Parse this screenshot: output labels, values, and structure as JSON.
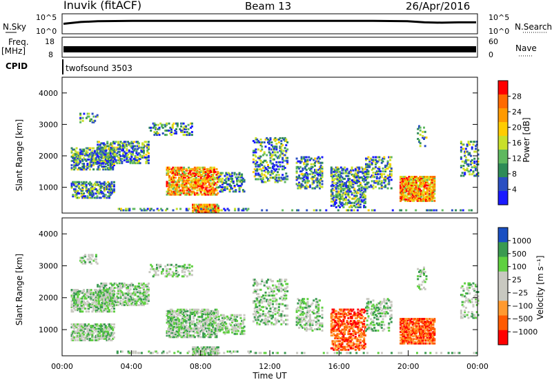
{
  "header": {
    "station": "Inuvik (fitACF)",
    "beam": "Beam 13",
    "date": "26/Apr/2016"
  },
  "colors": {
    "power_scale": [
      "#1a1aff",
      "#2a4fc2",
      "#2e8b57",
      "#5fb85f",
      "#c8e02a",
      "#ffcc00",
      "#ff9a00",
      "#ff6a00",
      "#ff0000"
    ],
    "velocity_scale": [
      "#ff0000",
      "#ff5a00",
      "#ff9a30",
      "#c8c8c0",
      "#c8c8c0",
      "#5fd040",
      "#3a9a50",
      "#1a4fc2"
    ]
  },
  "chart_data": [
    {
      "type": "line",
      "name": "nsky-nsearch-panel",
      "ylabel_left": "N.Sky",
      "ylabel_right": "N.Search",
      "left_ticks": [
        "10^5",
        "10^0"
      ],
      "right_ticks": [
        "10^5",
        "10^0"
      ],
      "x": [
        0,
        1,
        2,
        4,
        6,
        8,
        10,
        12,
        14,
        16,
        18,
        20,
        21,
        22,
        23,
        24
      ],
      "y_log": [
        2.6,
        3.1,
        3.3,
        3.4,
        3.4,
        3.4,
        3.4,
        3.4,
        3.4,
        3.4,
        3.4,
        3.3,
        3.0,
        2.9,
        3.0,
        3.0
      ]
    },
    {
      "type": "line",
      "name": "freq-nave-panel",
      "ylabel_left": "Freq.",
      "ylabel_left_unit": "[MHz]",
      "ylabel_right": "Nave",
      "left_ticks": [
        "18",
        "8"
      ],
      "right_ticks": [
        "60",
        "0"
      ],
      "freq_mhz": 11,
      "nave_range": [
        10,
        30
      ]
    },
    {
      "type": "heatmap",
      "name": "cpid-strip",
      "label": "CPID",
      "program": "twofsound 3503"
    },
    {
      "type": "heatmap",
      "name": "power-panel",
      "ylabel": "Slant Range [km]",
      "y_ticks": [
        "4000",
        "3000",
        "2000",
        "1000"
      ],
      "ylim": [
        180,
        4500
      ],
      "xlim": [
        0,
        24
      ],
      "colorbar_label": "Power [dB]",
      "colorbar_ticks": [
        "28",
        "24",
        "20",
        "16",
        "12",
        "8",
        "4"
      ],
      "colorbar_range": [
        0,
        32
      ]
    },
    {
      "type": "heatmap",
      "name": "velocity-panel",
      "ylabel": "Slant Range [km]",
      "y_ticks": [
        "4000",
        "3000",
        "2000",
        "1000"
      ],
      "ylim": [
        180,
        4500
      ],
      "xlim": [
        0,
        24
      ],
      "colorbar_label": "Velocity [m s⁻¹]",
      "colorbar_ticks": [
        "1000",
        "500",
        "100",
        "25",
        "−25",
        "−100",
        "−500",
        "−1000"
      ],
      "x_ticks": [
        "00:00",
        "04:00",
        "08:00",
        "12:00",
        "16:00",
        "20:00",
        "00:00"
      ],
      "xlabel": "Time UT"
    }
  ]
}
